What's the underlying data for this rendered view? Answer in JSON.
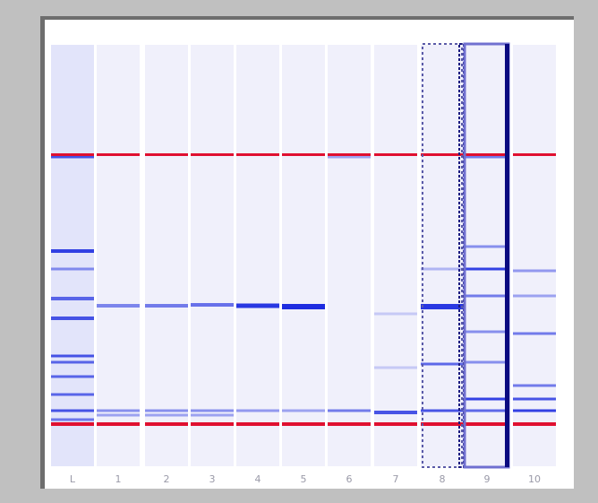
{
  "gel": {
    "lane_labels": [
      "L",
      "1",
      "2",
      "3",
      "4",
      "5",
      "6",
      "7",
      "8",
      "9",
      "10"
    ]
  }
}
